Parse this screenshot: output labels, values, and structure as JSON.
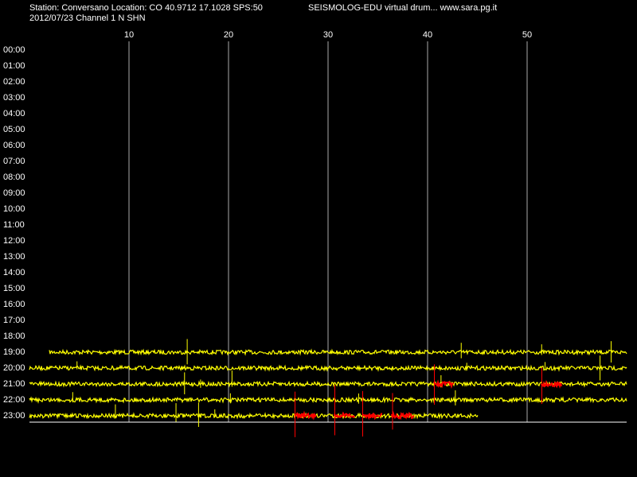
{
  "header": {
    "station_line": "Station: Conversano Location: CO 40.9712 17.1028 SPS:50",
    "brand": "SEISMOLOG-EDU virtual drum... www.sara.pg.it",
    "date_line": "2012/07/23  Channel 1 N SHN"
  },
  "chart_data": {
    "type": "helicorder",
    "categories": [
      "00:00",
      "01:00",
      "02:00",
      "03:00",
      "04:00",
      "05:00",
      "06:00",
      "07:00",
      "08:00",
      "09:00",
      "10:00",
      "11:00",
      "12:00",
      "13:00",
      "14:00",
      "15:00",
      "16:00",
      "17:00",
      "18:00",
      "19:00",
      "20:00",
      "21:00",
      "22:00",
      "23:00"
    ],
    "xlim": [
      0,
      60
    ],
    "xticks": [
      10,
      20,
      30,
      40,
      50
    ],
    "grid": true,
    "trace_start": [
      null,
      null,
      null,
      null,
      null,
      null,
      null,
      null,
      null,
      null,
      null,
      null,
      null,
      null,
      null,
      null,
      null,
      null,
      null,
      2,
      0,
      0,
      0,
      0
    ],
    "trace_end": [
      null,
      null,
      null,
      null,
      null,
      null,
      null,
      null,
      null,
      null,
      null,
      null,
      null,
      null,
      null,
      null,
      null,
      null,
      null,
      60,
      60,
      60,
      60,
      45
    ],
    "color": "#ffff00",
    "event_color": "#ff0000",
    "events": [
      {
        "row": 21,
        "start": 40.6,
        "end": 42.6
      },
      {
        "row": 21,
        "start": 51.4,
        "end": 53.4
      },
      {
        "row": 23,
        "start": 26.6,
        "end": 28.8
      },
      {
        "row": 23,
        "start": 30.6,
        "end": 32.6
      },
      {
        "row": 23,
        "start": 33.4,
        "end": 35.4
      },
      {
        "row": 23,
        "start": 36.4,
        "end": 38.6
      }
    ]
  }
}
